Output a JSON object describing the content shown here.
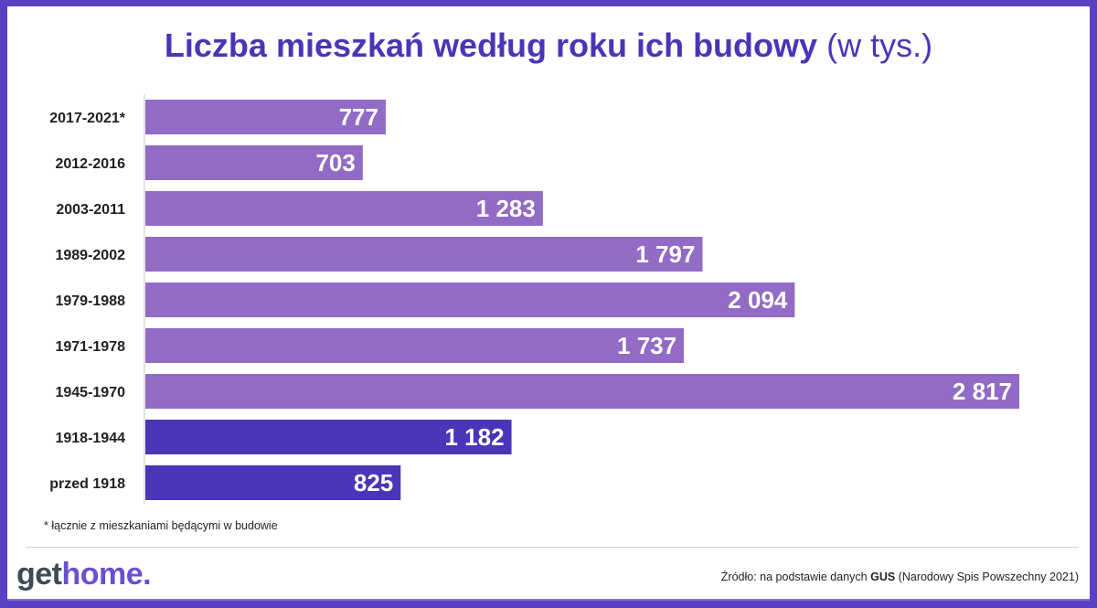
{
  "header": {
    "title_main": "Liczba mieszkań według roku ich budowy",
    "title_unit": "(w tys.)"
  },
  "chart_data": {
    "type": "bar",
    "orientation": "horizontal",
    "categories": [
      "2017-2021*",
      "2012-2016",
      "2003-2011",
      "1989-2002",
      "1979-1988",
      "1971-1978",
      "1945-1970",
      "1918-1944",
      "przed 1918"
    ],
    "values": [
      777,
      703,
      1283,
      1797,
      2094,
      1737,
      2817,
      1182,
      825
    ],
    "value_labels": [
      "777",
      "703",
      "1 283",
      "1 797",
      "2 094",
      "1 737",
      "2 817",
      "1 182",
      "825"
    ],
    "bar_colors": [
      "#916bc5",
      "#916bc5",
      "#916bc5",
      "#916bc5",
      "#916bc5",
      "#916bc5",
      "#916bc5",
      "#4a35b8",
      "#4a35b8"
    ],
    "xlim": [
      0,
      2900
    ],
    "grid": false
  },
  "footnote": "* łącznie z mieszkaniami będącymi w budowie",
  "logo": {
    "part1": "get",
    "part2": "home."
  },
  "source": {
    "prefix": "Źródło: na podstawie danych",
    "org": "GUS",
    "suffix": "(Narodowy Spis Powszechny 2021)"
  }
}
